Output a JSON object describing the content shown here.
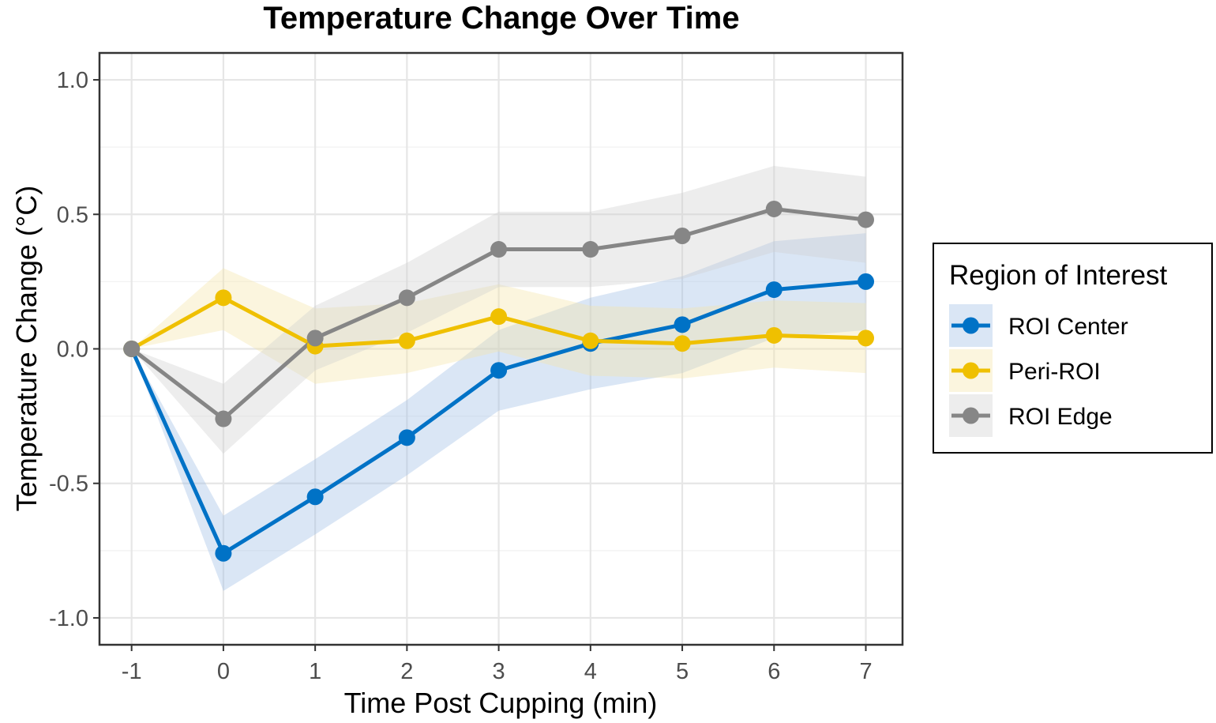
{
  "chart_data": {
    "type": "line",
    "title": "Temperature Change Over Time",
    "xlabel": "Time Post Cupping (min)",
    "ylabel": "Temperature Change (°C)",
    "x": [
      -1,
      0,
      1,
      2,
      3,
      4,
      5,
      6,
      7
    ],
    "xticks": [
      "-1",
      "0",
      "1",
      "2",
      "3",
      "4",
      "5",
      "6",
      "7"
    ],
    "yticks": [
      {
        "value": 1.0,
        "label": "1.0"
      },
      {
        "value": 0.5,
        "label": "0.5"
      },
      {
        "value": 0.0,
        "label": "0.0"
      },
      {
        "value": -0.5,
        "label": "-0.5"
      },
      {
        "value": -1.0,
        "label": "-1.0"
      }
    ],
    "xlim": [
      -1.35,
      7.4
    ],
    "ylim": [
      -1.1,
      1.1
    ],
    "grid": true,
    "legend": {
      "title": "Region of Interest",
      "placement": "right"
    },
    "series": [
      {
        "name": "ROI Center",
        "color": "#0072C6",
        "band_color": "#9DBDE6",
        "values": [
          0.0,
          -0.76,
          -0.55,
          -0.33,
          -0.08,
          0.02,
          0.09,
          0.22,
          0.25
        ],
        "upper": [
          0.0,
          -0.62,
          -0.41,
          -0.19,
          0.07,
          0.19,
          0.27,
          0.4,
          0.43
        ],
        "lower": [
          0.0,
          -0.9,
          -0.69,
          -0.47,
          -0.23,
          -0.15,
          -0.09,
          0.04,
          0.07
        ]
      },
      {
        "name": "Peri-ROI",
        "color": "#EFC000",
        "band_color": "#F5E6A8",
        "values": [
          0.0,
          0.19,
          0.01,
          0.03,
          0.12,
          0.03,
          0.02,
          0.05,
          0.04
        ],
        "upper": [
          0.0,
          0.3,
          0.15,
          0.17,
          0.24,
          0.16,
          0.15,
          0.18,
          0.17
        ],
        "lower": [
          0.0,
          0.07,
          -0.13,
          -0.09,
          -0.01,
          -0.1,
          -0.11,
          -0.07,
          -0.09
        ]
      },
      {
        "name": "ROI Edge",
        "color": "#868686",
        "band_color": "#CFCFCF",
        "values": [
          0.0,
          -0.26,
          0.04,
          0.19,
          0.37,
          0.37,
          0.42,
          0.52,
          0.48
        ],
        "upper": [
          0.0,
          -0.13,
          0.16,
          0.32,
          0.51,
          0.51,
          0.58,
          0.68,
          0.64
        ],
        "lower": [
          0.0,
          -0.39,
          -0.08,
          0.06,
          0.23,
          0.23,
          0.26,
          0.36,
          0.32
        ]
      }
    ]
  }
}
